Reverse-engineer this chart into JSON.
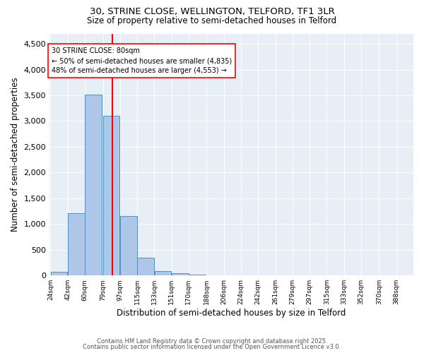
{
  "title_line1": "30, STRINE CLOSE, WELLINGTON, TELFORD, TF1 3LR",
  "title_line2": "Size of property relative to semi-detached houses in Telford",
  "xlabel": "Distribution of semi-detached houses by size in Telford",
  "ylabel": "Number of semi-detached properties",
  "bin_labels": [
    "24sqm",
    "42sqm",
    "60sqm",
    "79sqm",
    "97sqm",
    "115sqm",
    "133sqm",
    "151sqm",
    "170sqm",
    "188sqm",
    "206sqm",
    "224sqm",
    "242sqm",
    "261sqm",
    "279sqm",
    "297sqm",
    "315sqm",
    "333sqm",
    "352sqm",
    "370sqm",
    "388sqm"
  ],
  "bin_edges": [
    15,
    33,
    51,
    70,
    88,
    106,
    124,
    142,
    160,
    179,
    197,
    215,
    233,
    251,
    269,
    287,
    305,
    323,
    341,
    360,
    378,
    396
  ],
  "counts": [
    70,
    1210,
    3520,
    3100,
    1160,
    350,
    90,
    45,
    20,
    8,
    3,
    0,
    0,
    0,
    0,
    0,
    0,
    0,
    0,
    0,
    0
  ],
  "bar_color": "#aec6e8",
  "bar_edge_color": "#5090c0",
  "property_size": 80,
  "vline_color": "red",
  "annotation_text": "30 STRINE CLOSE: 80sqm\n← 50% of semi-detached houses are smaller (4,835)\n48% of semi-detached houses are larger (4,553) →",
  "annotation_box_color": "white",
  "annotation_box_edge": "red",
  "ylim": [
    0,
    4700
  ],
  "yticks": [
    0,
    500,
    1000,
    1500,
    2000,
    2500,
    3000,
    3500,
    4000,
    4500
  ],
  "background_color": "#e8eef6",
  "grid_color": "white",
  "footer_line1": "Contains HM Land Registry data © Crown copyright and database right 2025.",
  "footer_line2": "Contains public sector information licensed under the Open Government Licence v3.0."
}
